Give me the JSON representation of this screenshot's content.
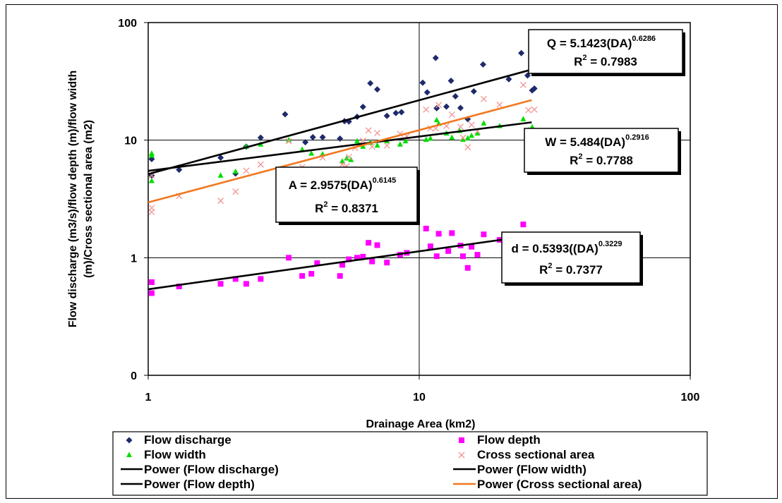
{
  "chart_data": {
    "type": "scatter",
    "xlabel": "Drainage Area (km2)",
    "ylabel_lines": [
      "Flow discharge (m3/s)/flow depth (m)/flow width",
      "(m)/Cross sectional area (m2)"
    ],
    "x_scale": "log",
    "y_scale": "log",
    "xlim": [
      1,
      100
    ],
    "ylim": [
      0.1,
      100
    ],
    "x_ticks": [
      {
        "v": 1,
        "label": "1"
      },
      {
        "v": 10,
        "label": "10"
      },
      {
        "v": 100,
        "label": "100"
      }
    ],
    "y_ticks": [
      {
        "v": 0.1,
        "label": "0"
      },
      {
        "v": 1,
        "label": "1"
      },
      {
        "v": 10,
        "label": "10"
      },
      {
        "v": 100,
        "label": "100"
      }
    ],
    "grid": true,
    "legend_position": "bottom",
    "series": [
      {
        "name": "Flow discharge",
        "marker": "diamond",
        "color": "#1f2a6b",
        "points": [
          [
            1.03,
            5
          ],
          [
            1.03,
            6.9
          ],
          [
            1.3,
            5.6
          ],
          [
            1.85,
            7.1
          ],
          [
            2.1,
            5.2
          ],
          [
            2.3,
            8.8
          ],
          [
            2.6,
            10.5
          ],
          [
            3.2,
            16.6
          ],
          [
            3.8,
            9.6
          ],
          [
            4.05,
            10.6
          ],
          [
            4.4,
            10.6
          ],
          [
            5.1,
            10.3
          ],
          [
            5.3,
            14.5
          ],
          [
            5.5,
            14.4
          ],
          [
            5.9,
            15.8
          ],
          [
            6.2,
            19.2
          ],
          [
            6.6,
            30.5
          ],
          [
            7.0,
            27
          ],
          [
            7.6,
            16.1
          ],
          [
            8.2,
            17
          ],
          [
            8.6,
            17.3
          ],
          [
            10.3,
            30.8
          ],
          [
            10.7,
            25.5
          ],
          [
            11.5,
            50
          ],
          [
            11.6,
            18.7
          ],
          [
            12.6,
            19.3
          ],
          [
            13.1,
            32
          ],
          [
            13.6,
            23.6
          ],
          [
            14.2,
            18.8
          ],
          [
            15.1,
            15.1
          ],
          [
            15.9,
            26
          ],
          [
            17.2,
            44
          ],
          [
            21.4,
            33
          ],
          [
            23.8,
            55
          ],
          [
            25.1,
            35.5
          ],
          [
            26.1,
            26.5
          ],
          [
            26.6,
            27.5
          ]
        ]
      },
      {
        "name": "Flow depth",
        "marker": "square",
        "color": "#ff00ff",
        "points": [
          [
            1.03,
            0.5
          ],
          [
            1.03,
            0.62
          ],
          [
            1.3,
            0.57
          ],
          [
            1.85,
            0.6
          ],
          [
            2.1,
            0.66
          ],
          [
            2.3,
            0.6
          ],
          [
            2.6,
            0.66
          ],
          [
            3.3,
            1.0
          ],
          [
            3.7,
            0.7
          ],
          [
            4.0,
            0.73
          ],
          [
            4.2,
            0.9
          ],
          [
            5.1,
            0.7
          ],
          [
            5.2,
            0.87
          ],
          [
            5.5,
            0.97
          ],
          [
            5.9,
            1.0
          ],
          [
            6.2,
            1.02
          ],
          [
            6.5,
            1.34
          ],
          [
            6.7,
            0.93
          ],
          [
            7.0,
            1.28
          ],
          [
            7.6,
            0.91
          ],
          [
            8.5,
            1.06
          ],
          [
            9.0,
            1.1
          ],
          [
            10.6,
            1.77
          ],
          [
            11.0,
            1.25
          ],
          [
            11.6,
            1.03
          ],
          [
            11.8,
            1.6
          ],
          [
            12.8,
            1.14
          ],
          [
            13.2,
            1.62
          ],
          [
            14.2,
            1.27
          ],
          [
            14.5,
            1.03
          ],
          [
            15.1,
            0.82
          ],
          [
            15.6,
            1.24
          ],
          [
            16.4,
            1.06
          ],
          [
            17.3,
            1.58
          ],
          [
            19.8,
            1.42
          ],
          [
            24.2,
            1.92
          ],
          [
            25.3,
            1.43
          ]
        ]
      },
      {
        "name": "Flow width",
        "marker": "triangle",
        "color": "#00dd00",
        "points": [
          [
            1.03,
            4.5
          ],
          [
            1.03,
            7.4
          ],
          [
            1.03,
            7.7
          ],
          [
            1.85,
            5.0
          ],
          [
            2.1,
            5.4
          ],
          [
            2.3,
            8.8
          ],
          [
            2.6,
            9.2
          ],
          [
            3.3,
            10
          ],
          [
            3.7,
            8.3
          ],
          [
            4.0,
            7.7
          ],
          [
            4.4,
            7.6
          ],
          [
            5.2,
            6.6
          ],
          [
            5.4,
            7.0
          ],
          [
            5.6,
            6.8
          ],
          [
            5.9,
            9.8
          ],
          [
            6.2,
            8.8
          ],
          [
            6.6,
            9.5
          ],
          [
            7.0,
            9.0
          ],
          [
            7.6,
            9.8
          ],
          [
            8.5,
            9.2
          ],
          [
            8.9,
            9.8
          ],
          [
            10.6,
            10.1
          ],
          [
            11.0,
            10.3
          ],
          [
            11.6,
            14.8
          ],
          [
            11.8,
            13.8
          ],
          [
            12.6,
            11.4
          ],
          [
            13.2,
            10.5
          ],
          [
            14.1,
            12.0
          ],
          [
            14.5,
            10.1
          ],
          [
            15.1,
            10.4
          ],
          [
            15.6,
            10.9
          ],
          [
            16.4,
            11.4
          ],
          [
            17.3,
            13.9
          ],
          [
            19.8,
            13.2
          ],
          [
            24.2,
            15.1
          ],
          [
            25.3,
            12.2
          ],
          [
            26.1,
            12.9
          ]
        ]
      },
      {
        "name": "Cross sectional area",
        "marker": "x",
        "color": "#f49494",
        "points": [
          [
            1.03,
            2.45
          ],
          [
            1.03,
            2.65
          ],
          [
            1.03,
            5.0
          ],
          [
            1.3,
            3.35
          ],
          [
            1.85,
            3.05
          ],
          [
            2.1,
            3.65
          ],
          [
            2.3,
            5.5
          ],
          [
            2.6,
            6.2
          ],
          [
            3.3,
            9.8
          ],
          [
            3.7,
            5.9
          ],
          [
            4.0,
            5.3
          ],
          [
            4.4,
            7.1
          ],
          [
            5.2,
            6.2
          ],
          [
            5.4,
            6.0
          ],
          [
            5.5,
            7.2
          ],
          [
            5.8,
            8.6
          ],
          [
            6.2,
            9.9
          ],
          [
            6.5,
            12.1
          ],
          [
            6.7,
            8.8
          ],
          [
            7.0,
            11.5
          ],
          [
            7.6,
            9.0
          ],
          [
            8.5,
            11.3
          ],
          [
            9.0,
            10.8
          ],
          [
            10.6,
            18.2
          ],
          [
            11.0,
            12.6
          ],
          [
            11.5,
            12.6
          ],
          [
            11.8,
            19.9
          ],
          [
            12.6,
            13.2
          ],
          [
            13.2,
            16.5
          ],
          [
            14.2,
            13.0
          ],
          [
            14.5,
            10.5
          ],
          [
            15.1,
            8.7
          ],
          [
            15.6,
            13.5
          ],
          [
            16.4,
            11.9
          ],
          [
            17.3,
            22.4
          ],
          [
            19.8,
            20
          ],
          [
            24.2,
            29.5
          ],
          [
            25.3,
            18
          ],
          [
            26.6,
            18.2
          ]
        ]
      }
    ],
    "trendlines": [
      {
        "name": "Power (Flow discharge)",
        "color": "#000000",
        "a": 5.1423,
        "b": 0.6286,
        "x_range": [
          1,
          26
        ]
      },
      {
        "name": "Power (Flow width)",
        "color": "#000000",
        "a": 5.484,
        "b": 0.2916,
        "x_range": [
          1,
          26
        ]
      },
      {
        "name": "Power (Flow depth)",
        "color": "#000000",
        "a": 0.5393,
        "b": 0.3229,
        "x_range": [
          1,
          26
        ]
      },
      {
        "name": "Power (Cross sectional area)",
        "color": "#f07820",
        "a": 2.9575,
        "b": 0.6145,
        "x_range": [
          1,
          26
        ]
      }
    ],
    "annotations": [
      {
        "id": "q",
        "eq_main": "Q = 5.1423(DA)",
        "eq_exp": "0.6286",
        "r2_label": "R",
        "r2_exp": "2",
        "r2_value": " = 0.7983"
      },
      {
        "id": "w",
        "eq_main": "W = 5.484(DA)",
        "eq_exp": "0.2916",
        "r2_label": "R",
        "r2_exp": "2",
        "r2_value": " = 0.7788"
      },
      {
        "id": "a",
        "eq_main": "A = 2.9575(DA)",
        "eq_exp": "0.6145",
        "r2_label": "R",
        "r2_exp": "2",
        "r2_value": " = 0.8371"
      },
      {
        "id": "d",
        "eq_main": "d = 0.5393((DA)",
        "eq_exp": "0.3229",
        "r2_label": "R",
        "r2_exp": "2",
        "r2_value": " = 0.7377"
      }
    ],
    "legend": [
      {
        "label": "Flow discharge",
        "kind": "marker",
        "marker": "diamond",
        "color": "#1f2a6b"
      },
      {
        "label": "Flow depth",
        "kind": "marker",
        "marker": "square",
        "color": "#ff00ff"
      },
      {
        "label": "Flow width",
        "kind": "marker",
        "marker": "triangle",
        "color": "#00dd00"
      },
      {
        "label": "Cross sectional area",
        "kind": "marker",
        "marker": "x",
        "color": "#f49494"
      },
      {
        "label": "Power (Flow discharge)",
        "kind": "line",
        "color": "#000000"
      },
      {
        "label": "Power (Flow width)",
        "kind": "line",
        "color": "#000000"
      },
      {
        "label": "Power (Flow depth)",
        "kind": "line",
        "color": "#000000"
      },
      {
        "label": "Power (Cross sectional area)",
        "kind": "line",
        "color": "#f07820"
      }
    ]
  }
}
